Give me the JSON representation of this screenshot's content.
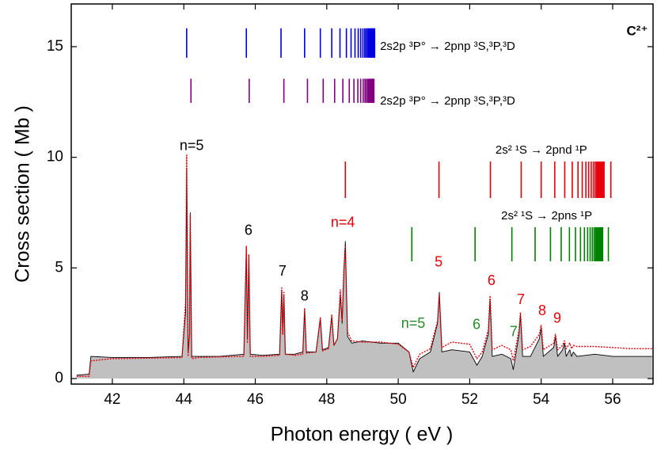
{
  "chart_data": {
    "type": "line",
    "title": "C²⁺",
    "x_label": "Photon energy  ( eV )",
    "y_label": "Cross section  ( Mb )",
    "xlim": [
      40.85,
      57.13
    ],
    "ylim": [
      -0.25,
      16.93
    ],
    "xticks": [
      42,
      44,
      46,
      48,
      50,
      52,
      54,
      56
    ],
    "yticks": [
      0,
      5,
      10,
      15
    ],
    "x": [
      41.0,
      41.35,
      41.4,
      42.0,
      43.0,
      43.95,
      44.05,
      44.08,
      44.12,
      44.16,
      44.18,
      44.22,
      44.4,
      45.0,
      45.68,
      45.75,
      45.78,
      45.82,
      45.86,
      46.2,
      46.68,
      46.74,
      46.77,
      46.8,
      46.84,
      47.1,
      47.33,
      47.38,
      47.43,
      47.7,
      47.82,
      47.88,
      48.05,
      48.14,
      48.2,
      48.3,
      48.38,
      48.43,
      48.48,
      48.52,
      48.58,
      48.7,
      49.0,
      49.5,
      50.0,
      50.3,
      50.42,
      50.6,
      50.9,
      51.1,
      51.15,
      51.22,
      51.5,
      52.0,
      52.2,
      52.35,
      52.52,
      52.57,
      52.63,
      52.9,
      53.15,
      53.22,
      53.38,
      53.42,
      53.48,
      53.7,
      53.95,
      54.0,
      54.06,
      54.35,
      54.4,
      54.46,
      54.6,
      54.65,
      54.7,
      54.8,
      54.85,
      54.9,
      55.0,
      55.5,
      56.0,
      56.5,
      57.1
    ],
    "series": [
      {
        "color": "#000000",
        "fill": "#c0c0c0",
        "values": [
          0.15,
          0.2,
          1.0,
          0.95,
          0.95,
          1.0,
          3.0,
          9.5,
          1.2,
          2.0,
          7.5,
          1.0,
          1.0,
          1.0,
          1.1,
          5.9,
          1.8,
          5.6,
          1.1,
          1.05,
          1.1,
          4.0,
          2.0,
          3.8,
          1.1,
          1.1,
          1.2,
          3.1,
          1.2,
          1.2,
          2.7,
          1.3,
          1.4,
          2.8,
          1.5,
          1.8,
          3.8,
          2.5,
          4.8,
          6.2,
          1.9,
          1.6,
          1.7,
          1.6,
          1.6,
          1.2,
          0.3,
          0.9,
          1.2,
          2.5,
          3.9,
          1.2,
          1.3,
          1.2,
          0.6,
          1.0,
          2.0,
          3.6,
          1.0,
          1.1,
          0.9,
          0.4,
          2.0,
          2.9,
          1.0,
          1.0,
          1.8,
          2.3,
          1.0,
          1.4,
          1.9,
          1.0,
          1.3,
          1.6,
          1.0,
          1.3,
          1.0,
          1.2,
          1.0,
          1.1,
          1.0,
          1.0,
          1.0
        ]
      },
      {
        "color": "#e8000b",
        "dashed": true,
        "values": [
          0.1,
          0.1,
          0.8,
          0.9,
          0.92,
          0.95,
          3.5,
          10.1,
          1.0,
          2.0,
          7.4,
          0.9,
          0.95,
          0.98,
          1.0,
          6.0,
          1.6,
          5.6,
          1.0,
          1.0,
          1.05,
          4.1,
          2.0,
          3.9,
          1.1,
          1.05,
          1.1,
          3.2,
          1.15,
          1.2,
          2.75,
          1.25,
          1.35,
          2.9,
          1.5,
          1.8,
          4.0,
          2.6,
          5.0,
          6.0,
          2.1,
          1.7,
          1.65,
          1.65,
          1.55,
          1.2,
          0.5,
          1.1,
          1.35,
          2.6,
          3.8,
          1.4,
          1.65,
          1.55,
          0.9,
          1.2,
          2.2,
          3.75,
          1.3,
          1.5,
          1.3,
          0.8,
          2.2,
          3.0,
          1.3,
          1.45,
          2.0,
          2.4,
          1.3,
          1.6,
          2.0,
          1.3,
          1.5,
          1.7,
          1.35,
          1.6,
          1.35,
          1.5,
          1.45,
          1.45,
          1.4,
          1.35,
          1.35
        ]
      }
    ],
    "line_series": [
      {
        "color": "#0000e0",
        "y_range": [
          14.5,
          15.83
        ],
        "x": [
          44.08,
          45.75,
          46.72,
          47.38,
          47.82,
          48.14,
          48.37,
          48.55,
          48.68,
          48.79,
          48.88,
          48.95,
          49.01,
          49.06,
          49.1,
          49.14,
          49.17,
          49.2,
          49.22,
          49.24,
          49.26,
          49.28,
          49.3,
          49.32,
          49.34
        ],
        "label": {
          "text": "2s2p ³P° → 2pnp ³S,³P,³D",
          "x": 49.49,
          "y": 15.0
        }
      },
      {
        "color": "#800080",
        "y_range": [
          12.46,
          13.55
        ],
        "x": [
          44.2,
          45.83,
          46.8,
          47.46,
          47.9,
          48.22,
          48.45,
          48.63,
          48.76,
          48.87,
          48.95,
          49.02,
          49.07,
          49.11,
          49.15,
          49.18,
          49.2,
          49.22,
          49.24,
          49.26,
          49.27,
          49.28,
          49.29,
          49.3,
          49.32
        ],
        "label": {
          "text": "2s2p ³P° → 2pnp ³S,³P,³D",
          "x": 49.49,
          "y": 12.53
        }
      },
      {
        "color": "#e8000b",
        "y_range": [
          8.16,
          9.81
        ],
        "x": [
          48.52,
          51.14,
          52.58,
          53.44,
          54.0,
          54.38,
          54.66,
          54.87,
          55.03,
          55.15,
          55.25,
          55.33,
          55.4,
          55.46,
          55.51,
          55.55,
          55.58,
          55.61,
          55.64,
          55.66,
          55.68,
          55.7,
          55.72,
          55.74,
          55.76,
          55.95
        ],
        "label": {
          "text": "2s² ¹S → 2pnd ¹P",
          "x": 52.72,
          "y": 10.31
        }
      },
      {
        "color": "#008000",
        "y_range": [
          5.3,
          6.84
        ],
        "x": [
          50.38,
          52.15,
          53.18,
          53.83,
          54.26,
          54.56,
          54.79,
          54.96,
          55.1,
          55.21,
          55.3,
          55.37,
          55.43,
          55.48,
          55.52,
          55.55,
          55.58,
          55.6,
          55.62,
          55.64,
          55.66,
          55.68,
          55.7,
          55.72,
          55.88
        ],
        "label": {
          "text": "2s² ¹S → 2pns ¹P",
          "x": 52.88,
          "y": 7.34
        }
      }
    ],
    "annotations": [
      {
        "text": "n=5",
        "x": 44.22,
        "y": 10.49,
        "color": "#000000"
      },
      {
        "text": "6",
        "x": 45.81,
        "y": 6.66,
        "color": "#000000"
      },
      {
        "text": "7",
        "x": 46.76,
        "y": 4.83,
        "color": "#000000"
      },
      {
        "text": "8",
        "x": 47.38,
        "y": 3.69,
        "color": "#000000"
      },
      {
        "text": "n=4",
        "x": 48.45,
        "y": 7.02,
        "color": "#e8000b"
      },
      {
        "text": "5",
        "x": 51.13,
        "y": 5.23,
        "color": "#e8000b"
      },
      {
        "text": "6",
        "x": 52.61,
        "y": 4.4,
        "color": "#e8000b"
      },
      {
        "text": "7",
        "x": 53.43,
        "y": 3.54,
        "color": "#e8000b"
      },
      {
        "text": "8",
        "x": 54.03,
        "y": 3.04,
        "color": "#e8000b"
      },
      {
        "text": "9",
        "x": 54.45,
        "y": 2.69,
        "color": "#e8000b"
      },
      {
        "text": "n=5",
        "x": 50.42,
        "y": 2.47,
        "color": "#2a8a2a"
      },
      {
        "text": "6",
        "x": 52.19,
        "y": 2.4,
        "color": "#2a8a2a"
      },
      {
        "text": "7",
        "x": 53.23,
        "y": 2.08,
        "color": "#2a8a2a"
      }
    ]
  }
}
